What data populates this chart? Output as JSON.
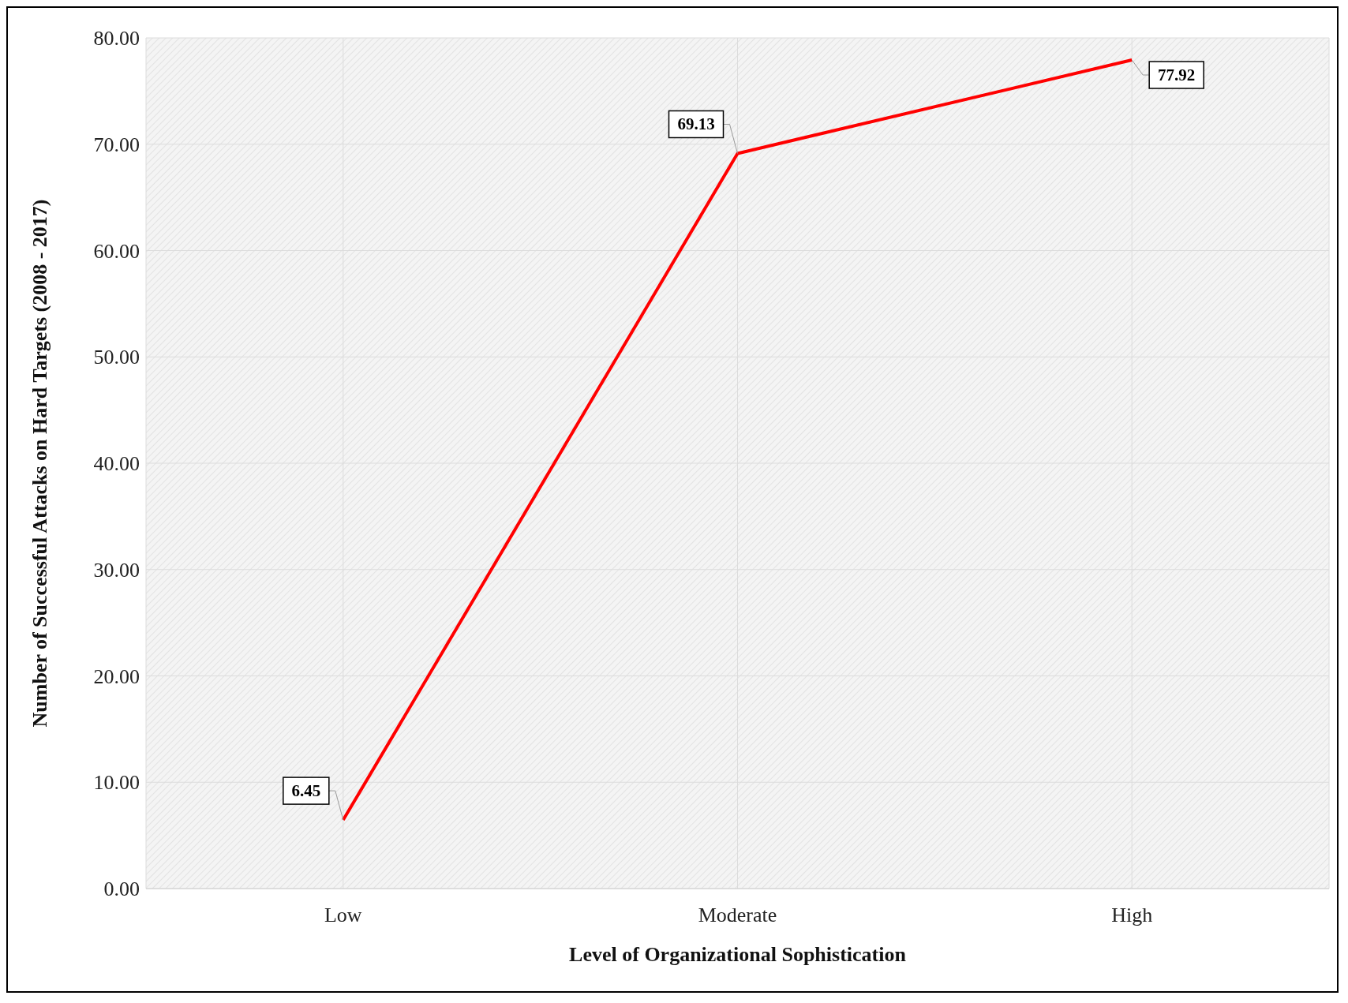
{
  "chart_data": {
    "type": "line",
    "xlabel": "Level of  Organizational Sophistication",
    "ylabel": "Number of  Successful Attacks on Hard Targets (2008 - 2017)",
    "categories": [
      "Low",
      "Moderate",
      "High"
    ],
    "series": [
      {
        "color": "#ff0000",
        "values": [
          6.45,
          69.13,
          77.92
        ]
      }
    ],
    "ylim": [
      0,
      80
    ],
    "yticks": [
      {
        "value": 0,
        "label": "0.00"
      },
      {
        "value": 10,
        "label": "10.00"
      },
      {
        "value": 20,
        "label": "20.00"
      },
      {
        "value": 30,
        "label": "30.00"
      },
      {
        "value": 40,
        "label": "40.00"
      },
      {
        "value": 50,
        "label": "50.00"
      },
      {
        "value": 60,
        "label": "60.00"
      },
      {
        "value": 70,
        "label": "70.00"
      },
      {
        "value": 80,
        "label": "80.00"
      }
    ],
    "grid": true,
    "data_labels": true,
    "marker": "none",
    "line_style": "solid"
  }
}
